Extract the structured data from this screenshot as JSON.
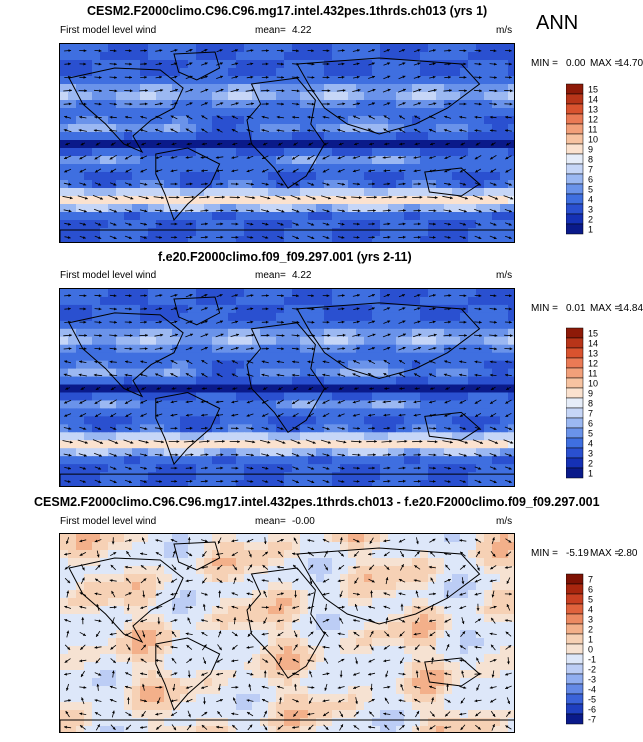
{
  "season": "ANN",
  "panels": [
    {
      "title": "CESM2.F2000climo.C96.C96.mg17.intel.432pes.1thrds.ch013 (yrs 1)",
      "field_label": "First model level wind",
      "mean_label": "mean=",
      "mean_value": "4.22",
      "units": "m/s",
      "min_label": "MIN =",
      "min_value": "0.00",
      "max_label": "MAX =",
      "max_value": "14.70",
      "colorbar_levels": [
        "15",
        "14",
        "13",
        "12",
        "11",
        "10",
        "9",
        "8",
        "7",
        "6",
        "5",
        "4",
        "3",
        "2",
        "1"
      ]
    },
    {
      "title": "f.e20.F2000climo.f09_f09.297.001 (yrs 2-11)",
      "field_label": "First model level wind",
      "mean_label": "mean=",
      "mean_value": "4.22",
      "units": "m/s",
      "min_label": "MIN =",
      "min_value": "0.01",
      "max_label": "MAX =",
      "max_value": "14.84",
      "colorbar_levels": [
        "15",
        "14",
        "13",
        "12",
        "11",
        "10",
        "9",
        "8",
        "7",
        "6",
        "5",
        "4",
        "3",
        "2",
        "1"
      ]
    },
    {
      "title": "CESM2.F2000climo.C96.C96.mg17.intel.432pes.1thrds.ch013 - f.e20.F2000climo.f09_f09.297.001",
      "field_label": "First model level wind",
      "mean_label": "mean=",
      "mean_value": "-0.00",
      "units": "m/s",
      "min_label": "MIN =",
      "min_value": "-5.19",
      "max_label": "MAX =",
      "max_value": "2.80",
      "colorbar_levels": [
        "7",
        "6",
        "5",
        "4",
        "3",
        "2",
        "1",
        "0",
        "-1",
        "-2",
        "-3",
        "-4",
        "-5",
        "-6",
        "-7"
      ]
    }
  ],
  "colors": {
    "abs_palette": [
      "#0a1a8a",
      "#1531b5",
      "#2a50d0",
      "#3f6fe0",
      "#6a93ea",
      "#9bb8f2",
      "#c6d6f7",
      "#e6edf9",
      "#fbe2cf",
      "#f7c3a1",
      "#f2a07a",
      "#ea7a55",
      "#d9532f",
      "#b83519",
      "#8e1a08"
    ],
    "diff_palette": [
      "#0a1a8a",
      "#1f3fbf",
      "#3b63d9",
      "#6489e6",
      "#91aef0",
      "#bccdf5",
      "#dde7f9",
      "#f6e2d2",
      "#f6d1b5",
      "#f3b08a",
      "#ec8a62",
      "#e0633d",
      "#c94022",
      "#a8260e",
      "#7e1204"
    ]
  },
  "chart_data": [
    {
      "type": "heatmap",
      "title": "CESM2.F2000climo.C96.C96.mg17.intel.432pes.1thrds.ch013 (yrs 1)",
      "variable": "First model level wind",
      "units": "m/s",
      "mean": 4.22,
      "min": 0.0,
      "max": 14.7,
      "colorbar_ticks": [
        1,
        2,
        3,
        4,
        5,
        6,
        7,
        8,
        9,
        10,
        11,
        12,
        13,
        14,
        15
      ]
    },
    {
      "type": "heatmap",
      "title": "f.e20.F2000climo.f09_f09.297.001 (yrs 2-11)",
      "variable": "First model level wind",
      "units": "m/s",
      "mean": 4.22,
      "min": 0.01,
      "max": 14.84,
      "colorbar_ticks": [
        1,
        2,
        3,
        4,
        5,
        6,
        7,
        8,
        9,
        10,
        11,
        12,
        13,
        14,
        15
      ]
    },
    {
      "type": "heatmap",
      "title": "CESM2.F2000climo.C96.C96.mg17.intel.432pes.1thrds.ch013 - f.e20.F2000climo.f09_f09.297.001",
      "variable": "First model level wind",
      "units": "m/s",
      "mean": -0.0,
      "min": -5.19,
      "max": 2.8,
      "colorbar_ticks": [
        -7,
        -6,
        -5,
        -4,
        -3,
        -2,
        -1,
        0,
        1,
        2,
        3,
        4,
        5,
        6,
        7
      ]
    }
  ]
}
